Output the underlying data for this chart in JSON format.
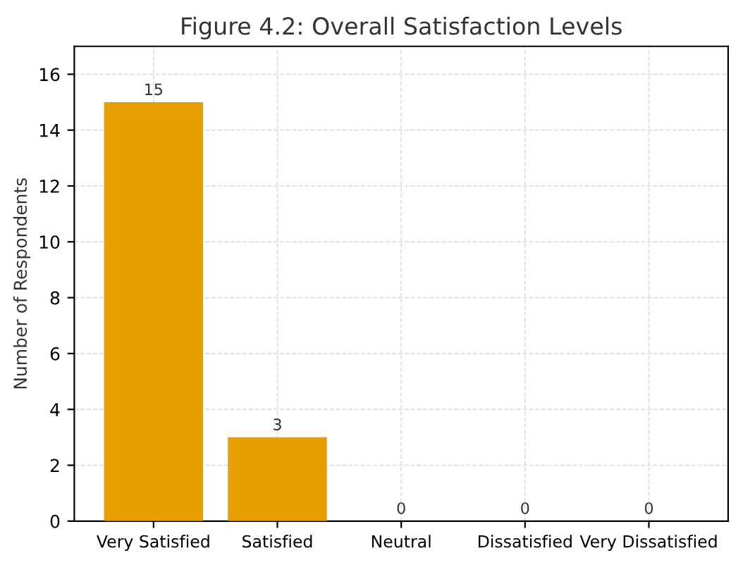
{
  "chart_data": {
    "type": "bar",
    "title": "Figure 4.2: Overall Satisfaction Levels",
    "ylabel": "Number of Respondents",
    "categories": [
      "Very Satisfied",
      "Satisfied",
      "Neutral",
      "Dissatisfied",
      "Very Dissatisfied"
    ],
    "values": [
      15,
      3,
      0,
      0,
      0
    ],
    "color": "#e69f00",
    "ylim": [
      0,
      17
    ],
    "yticks": [
      0,
      2,
      4,
      6,
      8,
      10,
      12,
      14,
      16
    ],
    "grid": true,
    "data_labels": true
  }
}
